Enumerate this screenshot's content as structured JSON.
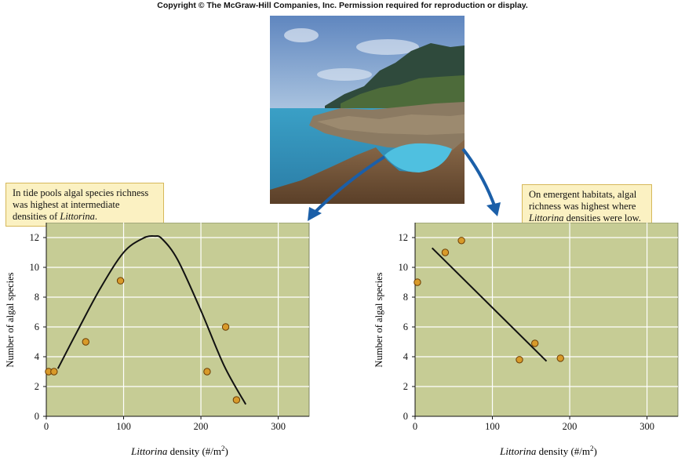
{
  "copyright": "Copyright © The McGraw-Hill Companies, Inc. Permission required for reproduction or display.",
  "colors": {
    "plot_bg": "#c6cc95",
    "grid": "#ffffff",
    "marker": "#d89a2a",
    "marker_edge": "#6b3d05",
    "callout_bg": "#fbf1c2"
  },
  "callouts": {
    "left": {
      "line1": "In tide pools algal species richness",
      "line2": "was highest at intermediate",
      "line3_pre": "densities of ",
      "line3_em": "Littorina",
      "line3_post": "."
    },
    "right": {
      "line1": "On emergent habitats, algal",
      "line2": "richness was highest where",
      "line3_em": "Littorina",
      "line3_post": " densities were low."
    }
  },
  "chart_data": [
    {
      "type": "scatter",
      "title": "",
      "xlabel_em": "Littorina",
      "xlabel_rest": " density (#/m",
      "xlabel_sup": "2",
      "xlabel_close": ")",
      "ylabel": "Number of algal species",
      "xlim": [
        0,
        340
      ],
      "ylim": [
        0,
        13
      ],
      "xticks": [
        0,
        100,
        200,
        300
      ],
      "yticks": [
        0,
        2,
        4,
        6,
        8,
        10,
        12
      ],
      "grid": true,
      "points": [
        [
          3,
          3
        ],
        [
          10,
          3
        ],
        [
          51,
          5
        ],
        [
          96,
          9.1
        ],
        [
          208,
          3
        ],
        [
          232,
          6
        ],
        [
          246,
          1.1
        ]
      ],
      "fit": {
        "kind": "hump-shaped curve",
        "x": [
          15,
          40,
          70,
          100,
          125,
          140,
          150,
          170,
          200,
          230,
          258
        ],
        "y": [
          3.2,
          5.7,
          8.6,
          11.0,
          11.95,
          12.1,
          11.9,
          10.5,
          7.1,
          3.4,
          0.8
        ]
      }
    },
    {
      "type": "scatter",
      "title": "",
      "xlabel_em": "Littorina",
      "xlabel_rest": " density (#/m",
      "xlabel_sup": "2",
      "xlabel_close": ")",
      "ylabel": "Number of algal species",
      "xlim": [
        0,
        340
      ],
      "ylim": [
        0,
        13
      ],
      "xticks": [
        0,
        100,
        200,
        300
      ],
      "yticks": [
        0,
        2,
        4,
        6,
        8,
        10,
        12
      ],
      "grid": true,
      "points": [
        [
          3,
          9
        ],
        [
          39,
          11
        ],
        [
          60,
          11.8
        ],
        [
          135,
          3.8
        ],
        [
          155,
          4.9
        ],
        [
          188,
          3.9
        ]
      ],
      "fit": {
        "kind": "linear",
        "x": [
          22,
          170
        ],
        "y": [
          11.3,
          3.7
        ]
      }
    }
  ]
}
